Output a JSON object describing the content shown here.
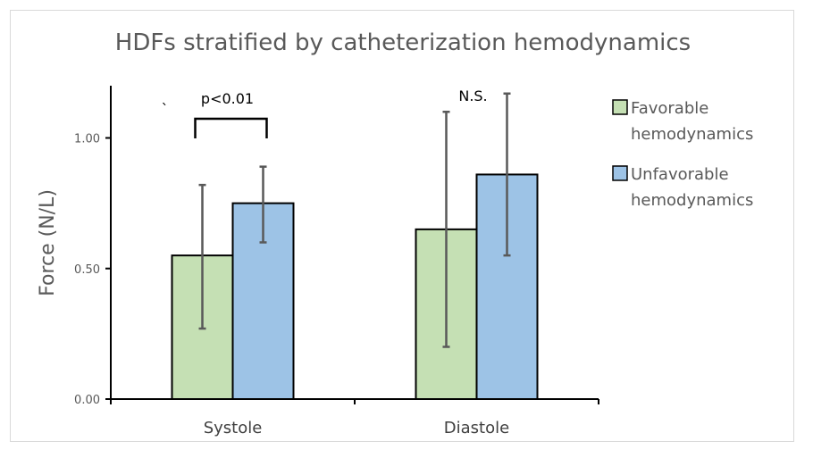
{
  "chart_data": {
    "type": "bar",
    "title": "HDFs stratified by catheterization hemodynamics",
    "xlabel": "",
    "ylabel": "Force (N/L)",
    "ylim": [
      0,
      1.2
    ],
    "yticks": [
      "0.00",
      "0.50",
      "1.00"
    ],
    "categories": [
      "Systole",
      "Diastole"
    ],
    "series": [
      {
        "name": "Favorable hemodynamics",
        "legend_lines": [
          "Favorable",
          "hemodynamics"
        ],
        "color": "#c5e0b4",
        "values": [
          0.55,
          0.65
        ],
        "error_low": [
          0.27,
          0.2
        ],
        "error_high": [
          0.82,
          1.1
        ]
      },
      {
        "name": "Unfavorable hemodynamics",
        "legend_lines": [
          "Unfavorable",
          "hemodynamics"
        ],
        "color": "#9dc3e6",
        "values": [
          0.75,
          0.86
        ],
        "error_low": [
          0.6,
          0.55
        ],
        "error_high": [
          0.89,
          1.17
        ]
      }
    ],
    "annotations": [
      {
        "category": "Systole",
        "text": "p<0.01",
        "bracket": true
      },
      {
        "category": "Diastole",
        "text": "N.S.",
        "bracket": false
      },
      {
        "category": "Systole",
        "text": "`",
        "bracket": false,
        "stray": true
      }
    ],
    "grid": false,
    "legend": "right"
  }
}
